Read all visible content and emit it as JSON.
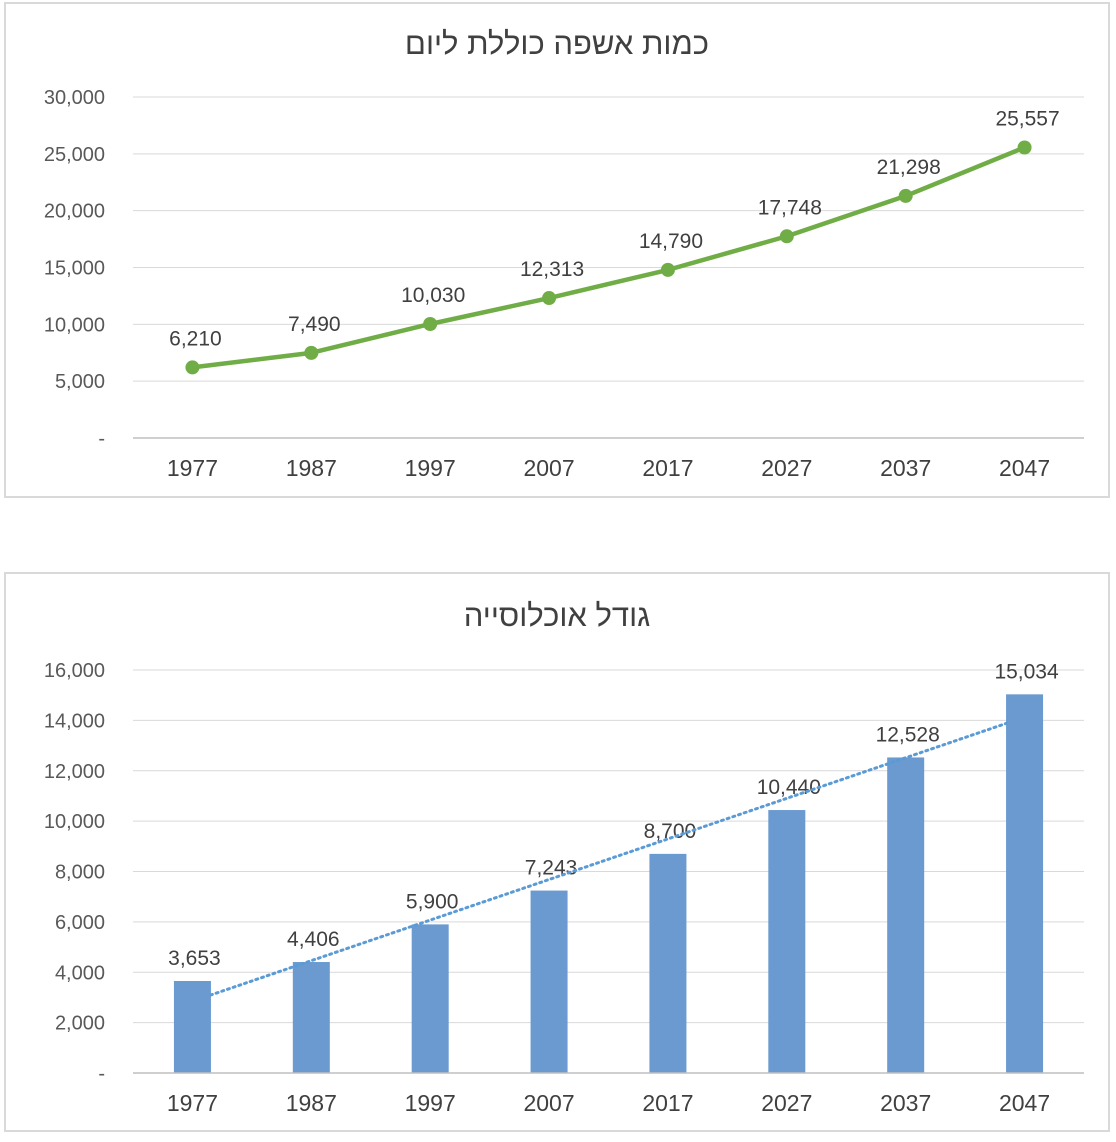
{
  "chart_data": [
    {
      "type": "line",
      "title": "כמות אשפה כוללת ליום",
      "categories": [
        "1977",
        "1987",
        "1997",
        "2007",
        "2017",
        "2027",
        "2037",
        "2047"
      ],
      "values": [
        6210,
        7490,
        10030,
        12313,
        14790,
        17748,
        21298,
        25557
      ],
      "value_labels": [
        "6,210",
        "7,490",
        "10,030",
        "12,313",
        "14,790",
        "17,748",
        "21,298",
        "25,557"
      ],
      "y_ticks": [
        "-",
        "5,000",
        "10,000",
        "15,000",
        "20,000",
        "25,000",
        "30,000"
      ],
      "ylim": [
        0,
        30000
      ],
      "grid": true,
      "legend": "none",
      "color": "#70ad47"
    },
    {
      "type": "bar",
      "title": "גודל אוכלוסייה",
      "categories": [
        "1977",
        "1987",
        "1997",
        "2007",
        "2017",
        "2027",
        "2037",
        "2047"
      ],
      "values": [
        3653,
        4406,
        5900,
        7243,
        8700,
        10440,
        12528,
        15034
      ],
      "value_labels": [
        "3,653",
        "4,406",
        "5,900",
        "7,243",
        "8,700",
        "10,440",
        "12,528",
        "15,034"
      ],
      "y_ticks": [
        "-",
        "2,000",
        "4,000",
        "6,000",
        "8,000",
        "10,000",
        "12,000",
        "14,000",
        "16,000"
      ],
      "ylim": [
        0,
        16000
      ],
      "trendline": "linear",
      "grid": true,
      "legend": "none",
      "color": "#6a9ad0",
      "trend_color": "#5b9bd5"
    }
  ]
}
